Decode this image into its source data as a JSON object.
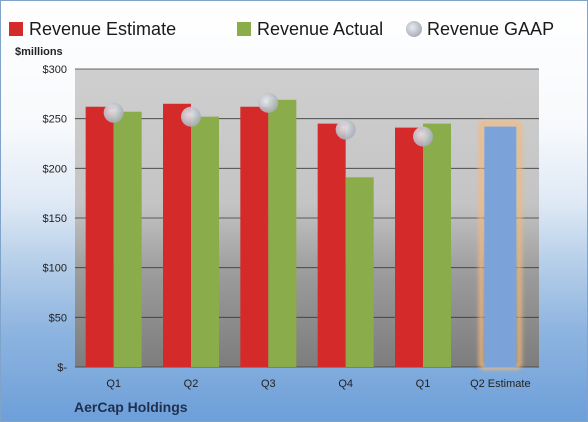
{
  "chart_data": {
    "type": "bar",
    "unit_label": "$millions",
    "categories": [
      "Q1",
      "Q2",
      "Q3",
      "Q4",
      "Q1",
      "Q2 Estimate"
    ],
    "series": [
      {
        "name": "Revenue Estimate",
        "color": "#d42a2a",
        "values": [
          262,
          265,
          262,
          245,
          241,
          null
        ]
      },
      {
        "name": "Revenue Actual",
        "color": "#8bac4a",
        "values": [
          257,
          252,
          269,
          191,
          245,
          null
        ]
      },
      {
        "name": "Revenue GAAP",
        "color": "#bfc5cf",
        "marker": "circle",
        "values": [
          256,
          252,
          266,
          239,
          232,
          null
        ]
      },
      {
        "name": "",
        "color": "#7ca3d9",
        "highlight": "#f5b97a",
        "values": [
          null,
          null,
          null,
          null,
          null,
          242
        ]
      }
    ],
    "ylim": [
      0,
      300
    ],
    "yticks": [
      0,
      50,
      100,
      150,
      200,
      250,
      300
    ],
    "ytick_labels": [
      "$-",
      "$50",
      "$100",
      "$150",
      "$200",
      "$250",
      "$300"
    ],
    "grid": true,
    "legend_position": "top"
  },
  "footer": {
    "company": "AerCap Holdings"
  }
}
